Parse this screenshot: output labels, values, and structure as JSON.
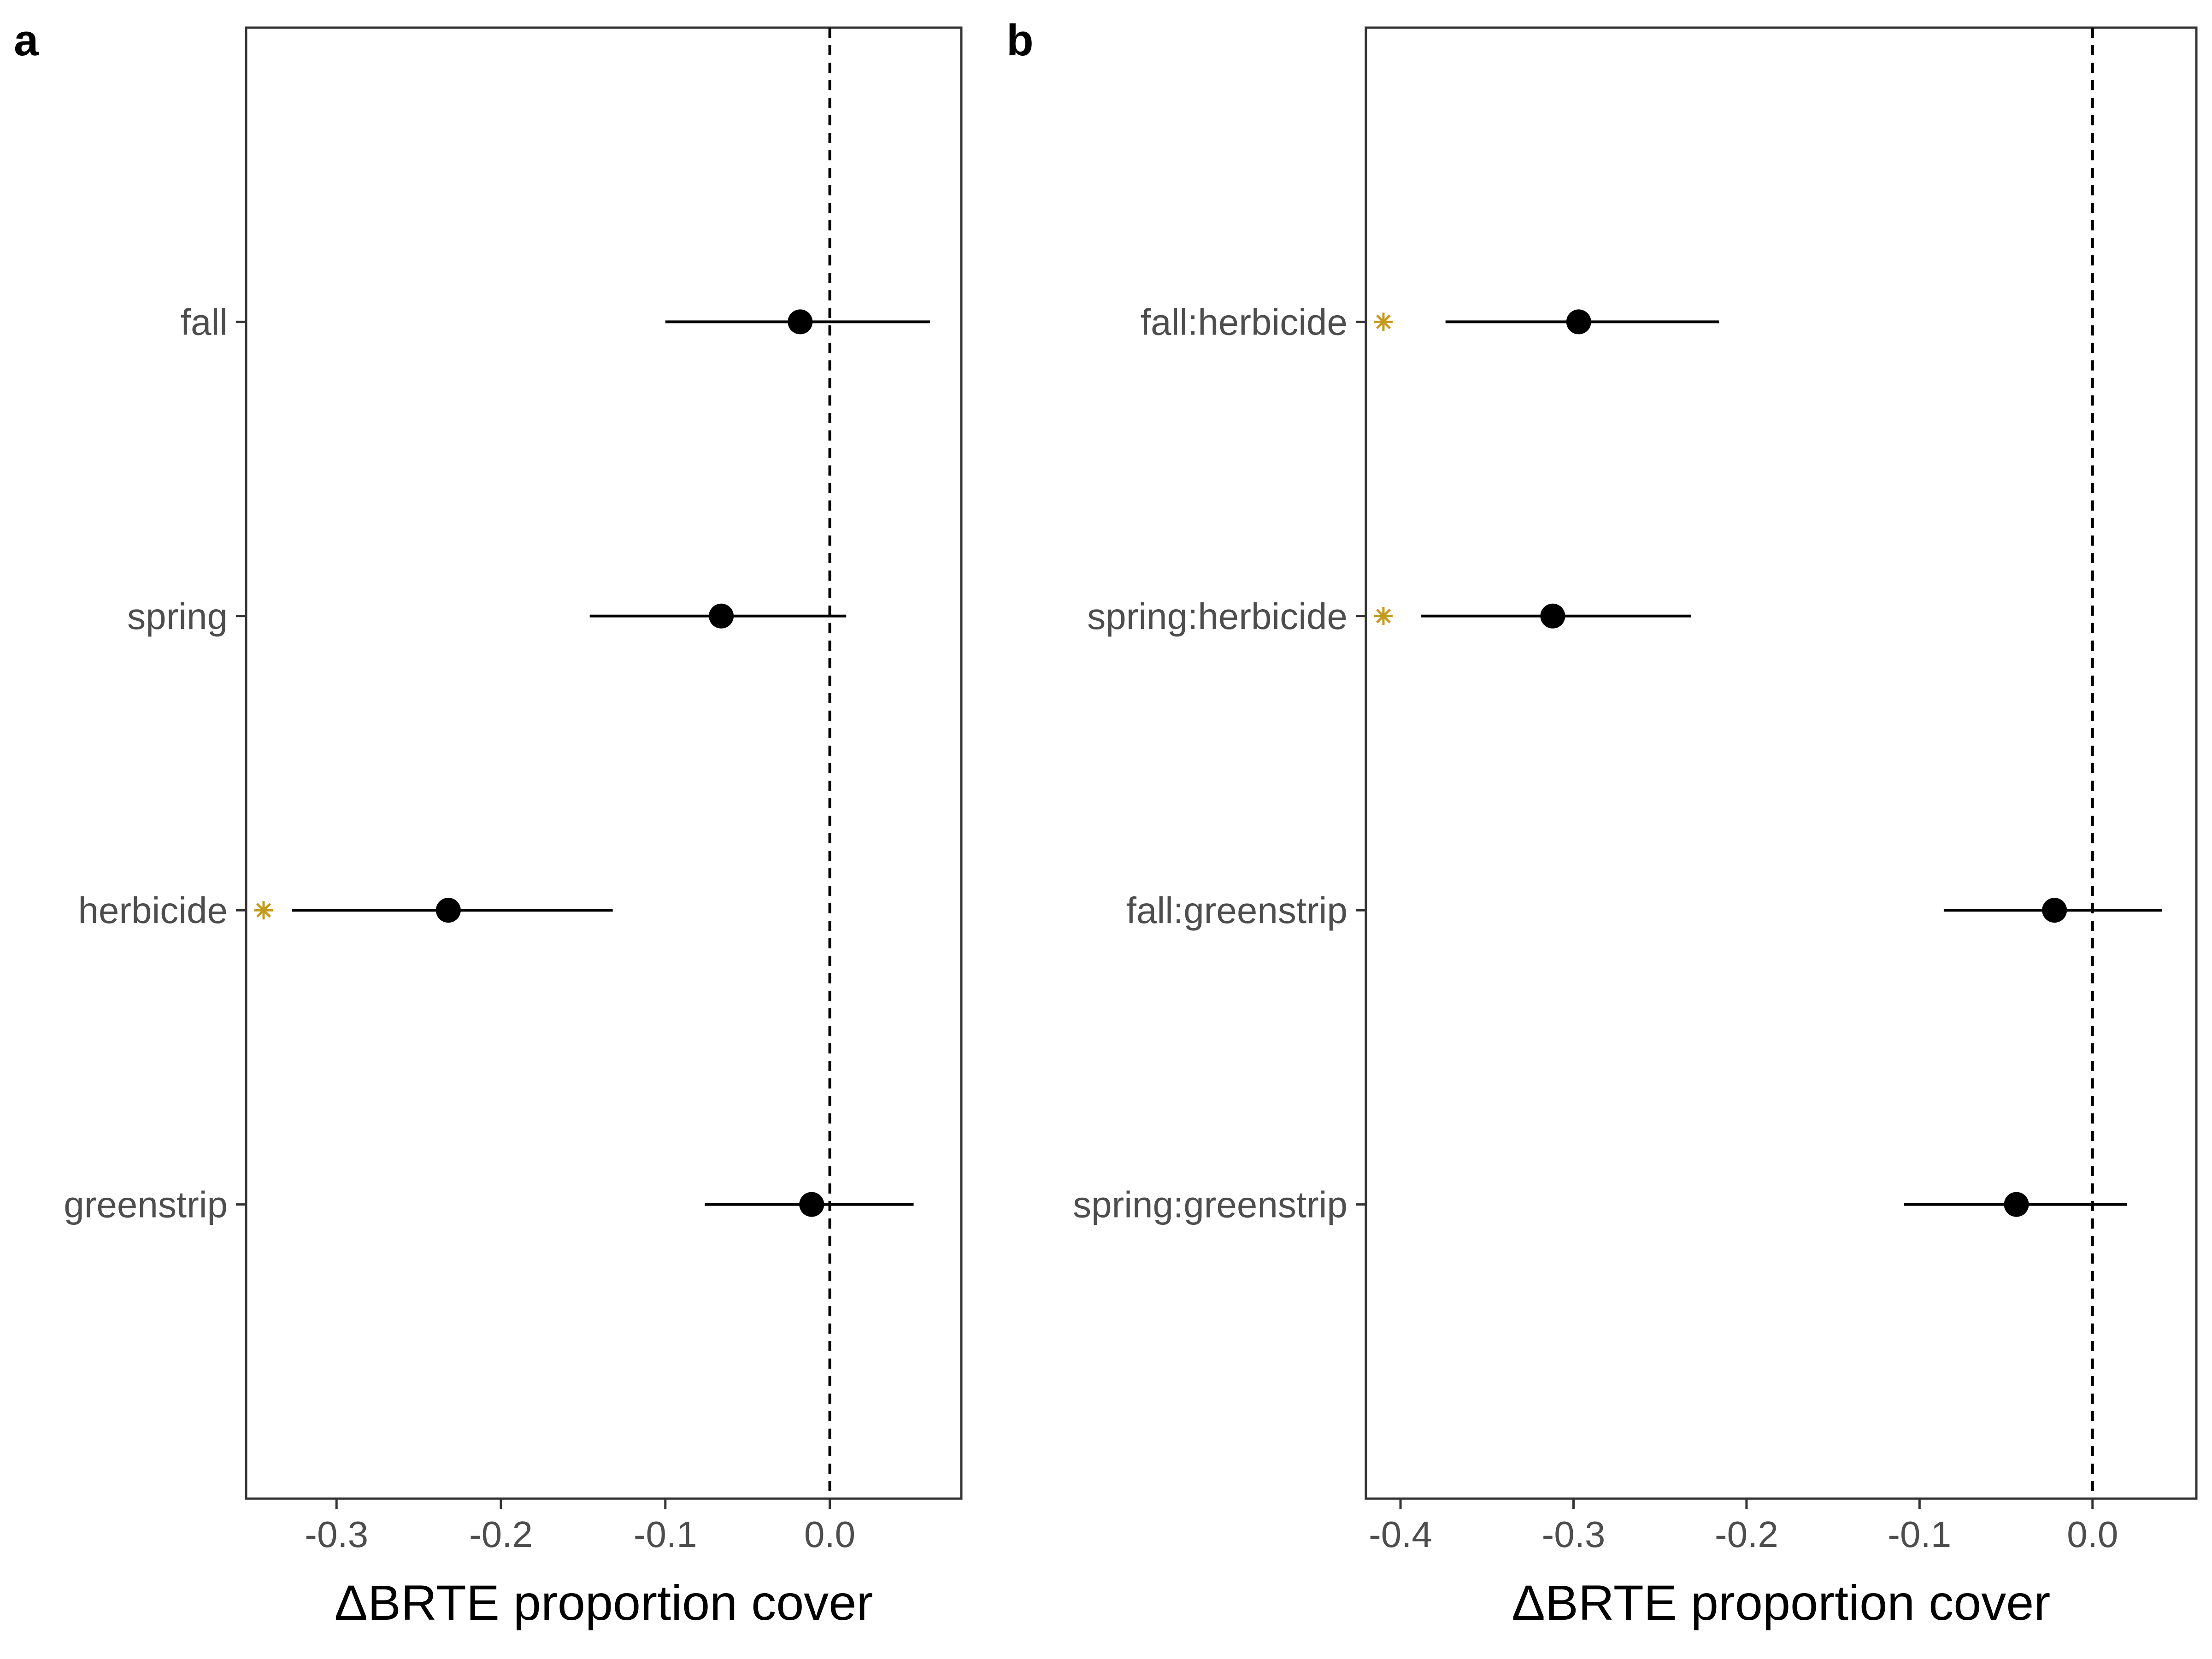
{
  "chart_data": [
    {
      "type": "scatter",
      "panel_label": "a",
      "xlabel": "ΔBRTE proportion cover",
      "ylabel": "",
      "xlim": [
        -0.355,
        0.08
      ],
      "xticks": [
        -0.3,
        -0.2,
        -0.1,
        0.0
      ],
      "xtick_labels": [
        "-0.3",
        "-0.2",
        "-0.1",
        "0.0"
      ],
      "reference_line": 0,
      "categories": [
        "fall",
        "spring",
        "herbicide",
        "greenstrip"
      ],
      "estimates": [
        -0.018,
        -0.066,
        -0.232,
        -0.011
      ],
      "lower": [
        -0.1,
        -0.146,
        -0.327,
        -0.076
      ],
      "upper": [
        0.061,
        0.01,
        -0.132,
        0.051
      ],
      "significant": [
        false,
        false,
        true,
        false
      ],
      "grid": false,
      "legend": "none",
      "colors": {
        "point": "#000000",
        "marker": "#C49A1C",
        "frame": "#333333"
      }
    },
    {
      "type": "scatter",
      "panel_label": "b",
      "xlabel": "ΔBRTE proportion cover",
      "ylabel": "",
      "xlim": [
        -0.42,
        0.06
      ],
      "xticks": [
        -0.4,
        -0.3,
        -0.2,
        -0.1,
        0.0
      ],
      "xtick_labels": [
        "-0.4",
        "-0.3",
        "-0.2",
        "-0.1",
        "0.0"
      ],
      "reference_line": 0,
      "categories": [
        "fall:herbicide",
        "spring:herbicide",
        "fall:greenstrip",
        "spring:greenstrip"
      ],
      "estimates": [
        -0.297,
        -0.312,
        -0.022,
        -0.044
      ],
      "lower": [
        -0.374,
        -0.388,
        -0.086,
        -0.109
      ],
      "upper": [
        -0.216,
        -0.232,
        0.04,
        0.02
      ],
      "significant": [
        true,
        true,
        false,
        false
      ],
      "grid": false,
      "legend": "none",
      "colors": {
        "point": "#000000",
        "marker": "#C49A1C",
        "frame": "#333333"
      }
    }
  ]
}
